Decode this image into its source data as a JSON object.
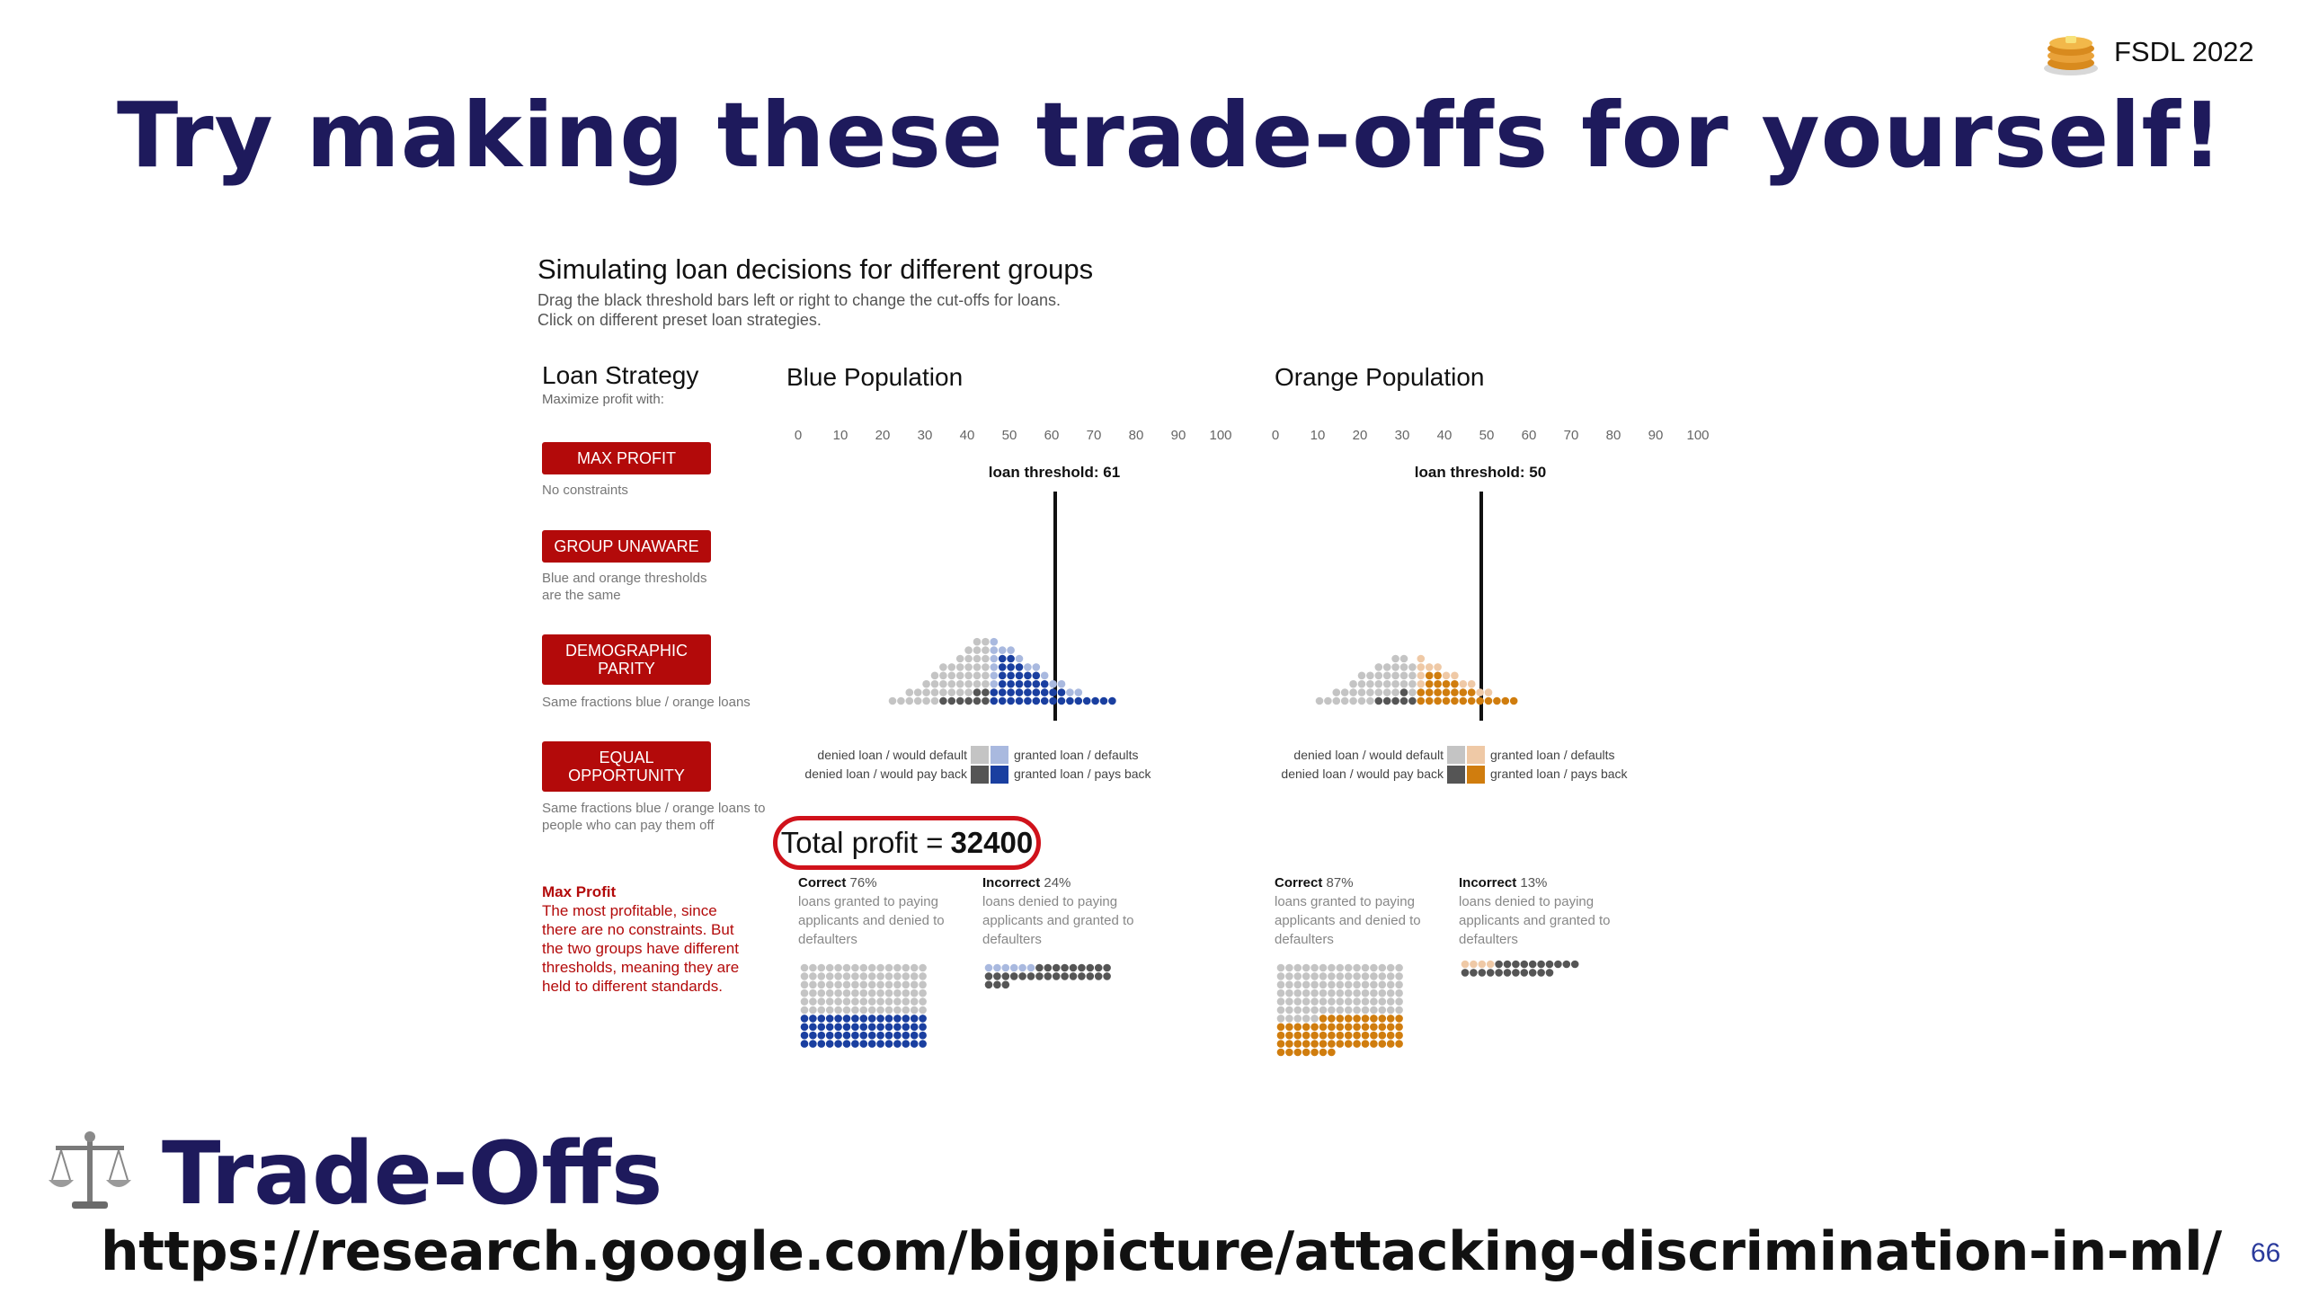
{
  "slide": {
    "title": "Try making these trade-offs for yourself!",
    "brand": "FSDL 2022",
    "brand_icon": "pancake-stack-icon",
    "footer_title": "Trade-Offs",
    "footer_icon": "balance-scale-icon",
    "url": "https://research.google.com/bigpicture/attacking-discrimination-in-ml/",
    "page_number": "66"
  },
  "sim": {
    "title": "Simulating loan decisions for different groups",
    "subtitle1": "Drag the black threshold bars left or right to change the cut-offs for loans.",
    "subtitle2": "Click on different preset loan strategies.",
    "strategy_title": "Loan Strategy",
    "strategy_sub": "Maximize profit with:",
    "buttons": [
      {
        "label": "MAX PROFIT",
        "desc": "No constraints"
      },
      {
        "label": "GROUP UNAWARE",
        "desc": "Blue and orange thresholds are the same"
      },
      {
        "label": "DEMOGRAPHIC PARITY",
        "desc": "Same fractions blue / orange loans"
      },
      {
        "label": "EQUAL OPPORTUNITY",
        "desc": "Same fractions blue / orange loans to people who can pay them off"
      }
    ],
    "note_title": "Max Profit",
    "note_body": "The most profitable, since there are no constraints. But the two groups have different thresholds, meaning they are held to different standards.",
    "total_profit_label": "Total profit =",
    "total_profit_value": "32400",
    "axis_ticks": [
      "0",
      "10",
      "20",
      "30",
      "40",
      "50",
      "60",
      "70",
      "80",
      "90",
      "100"
    ],
    "colors": {
      "button": "#b30a0a",
      "blue": "#1a3fa0",
      "blue_light": "#a9b9df",
      "orange": "#d07d0e",
      "orange_light": "#efc9a6",
      "grey_light": "#c4c4c4",
      "grey_dark": "#555555"
    }
  },
  "populations": [
    {
      "name": "Blue Population",
      "threshold_label": "loan threshold: 61",
      "threshold": 61,
      "legend": {
        "denied_default": "denied loan / would default",
        "denied_pay": "denied loan / would pay back",
        "granted_default": "granted loan / defaults",
        "granted_pay": "granted loan / pays back"
      },
      "correct_label": "Correct",
      "correct_pct": "76%",
      "correct_desc": "loans granted to paying applicants and denied to defaulters",
      "incorrect_label": "Incorrect",
      "incorrect_pct": "24%",
      "incorrect_desc": "loans denied to paying applicants and granted to defaulters"
    },
    {
      "name": "Orange Population",
      "threshold_label": "loan threshold: 50",
      "threshold": 50,
      "legend": {
        "denied_default": "denied loan / would default",
        "denied_pay": "denied loan / would pay back",
        "granted_default": "granted loan / defaults",
        "granted_pay": "granted loan / pays back"
      },
      "correct_label": "Correct",
      "correct_pct": "87%",
      "correct_desc": "loans granted to paying applicants and denied to defaulters",
      "incorrect_label": "Incorrect",
      "incorrect_pct": "13%",
      "incorrect_desc": "loans denied to paying applicants and granted to defaulters"
    }
  ]
}
